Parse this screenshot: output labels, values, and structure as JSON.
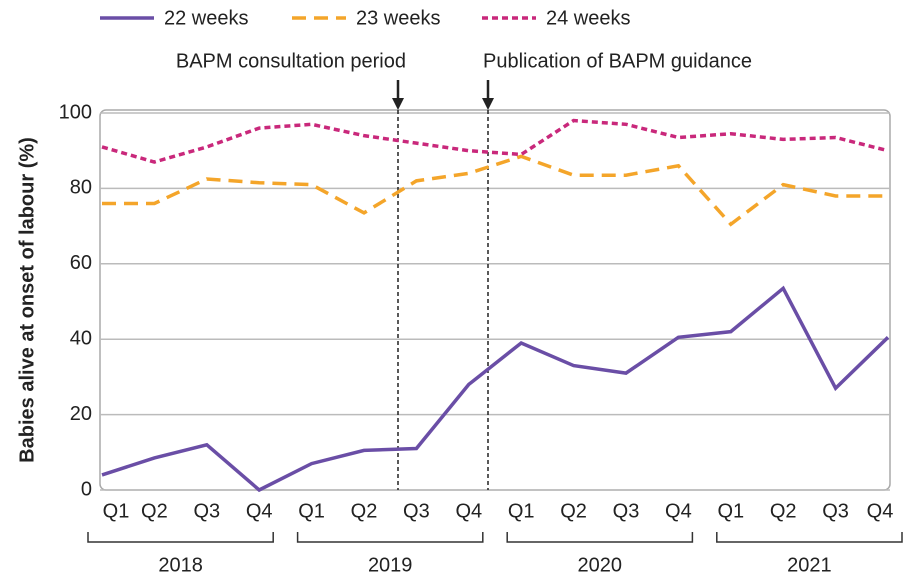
{
  "chart_data": {
    "type": "line",
    "y_label": "Babies alive at onset of labour (%)",
    "categories": [
      "Q1",
      "Q2",
      "Q3",
      "Q4",
      "Q1",
      "Q2",
      "Q3",
      "Q4",
      "Q1",
      "Q2",
      "Q3",
      "Q4",
      "Q1",
      "Q2",
      "Q3",
      "Q4"
    ],
    "years": [
      "2018",
      "2019",
      "2020",
      "2021"
    ],
    "series": [
      {
        "name": "22 weeks",
        "color": "#6a4ea6",
        "dash": "solid",
        "values": [
          4,
          8.5,
          12,
          0,
          7,
          10.5,
          11,
          28,
          39,
          33,
          31,
          40.5,
          42,
          53.5,
          27,
          40.5
        ]
      },
      {
        "name": "23 weeks",
        "color": "#f4a52a",
        "dash": "dashed",
        "values": [
          76,
          76,
          82.5,
          81.5,
          81,
          73.5,
          82,
          84,
          88.5,
          83.5,
          83.5,
          86,
          70.5,
          81,
          78,
          78
        ]
      },
      {
        "name": "24 weeks",
        "color": "#c9287b",
        "dash": "dotted",
        "values": [
          91,
          87,
          91,
          96,
          97,
          94,
          92,
          90,
          89,
          98,
          97,
          93.5,
          94.5,
          93,
          93.5,
          90
        ]
      }
    ],
    "annotations": [
      "BAPM consultation period",
      "Publication of BAPM guidance"
    ],
    "ylim": [
      0,
      100
    ],
    "yticks": [
      0,
      20,
      40,
      60,
      80,
      100
    ],
    "grid": true,
    "legend": "top"
  }
}
